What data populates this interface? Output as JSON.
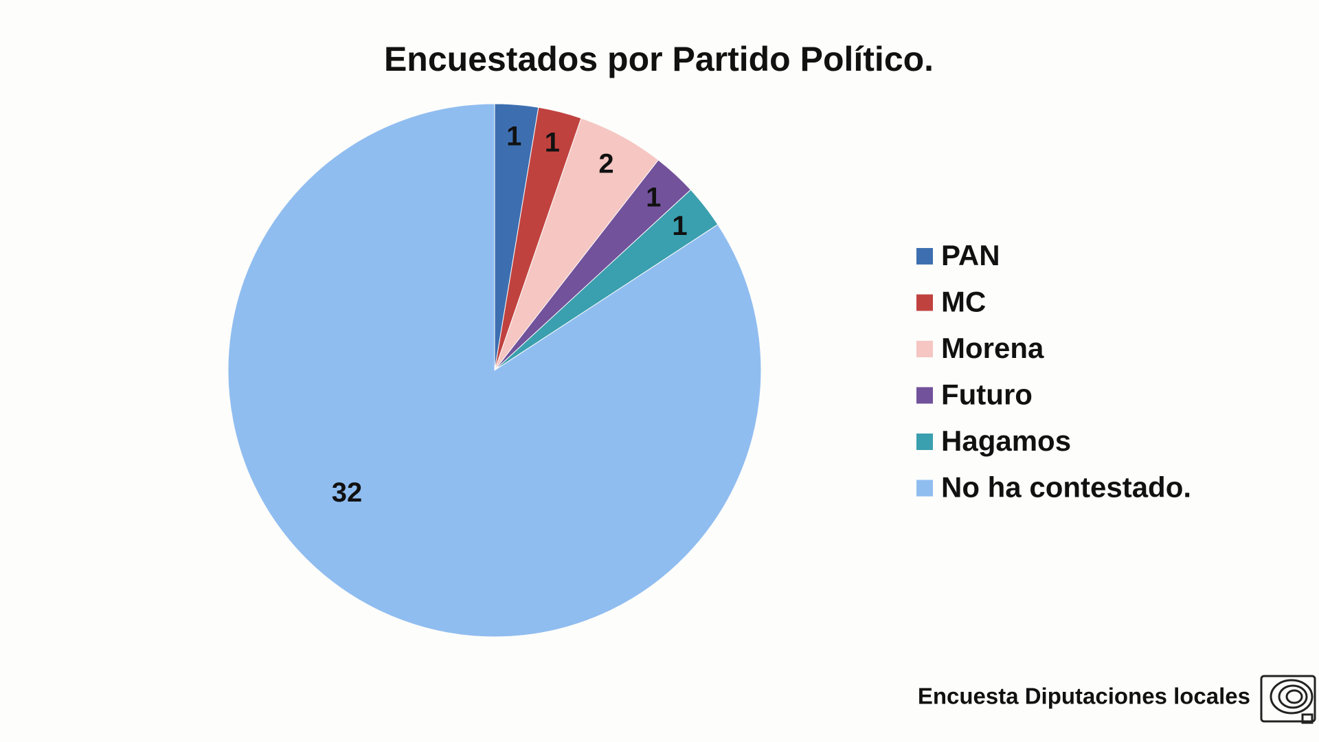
{
  "chart_data": {
    "type": "pie",
    "title": "Encuestados por Partido Político.",
    "categories": [
      "PAN",
      "MC",
      "Morena",
      "Futuro",
      "Hagamos",
      "No ha contestado."
    ],
    "values": [
      1,
      1,
      2,
      1,
      1,
      32
    ],
    "colors": [
      "#3d6fb0",
      "#c0423f",
      "#f5c6c2",
      "#72529b",
      "#3a9fae",
      "#90bdf0"
    ],
    "legend": "right"
  },
  "footer": {
    "text": "Encuesta Diputaciones locales"
  }
}
